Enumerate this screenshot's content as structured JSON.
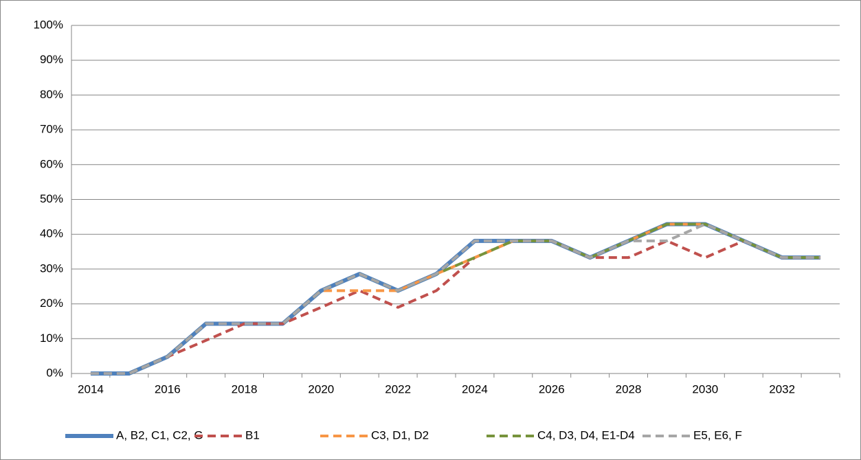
{
  "chart_data": {
    "type": "line",
    "categories": [
      "2014",
      null,
      "2016",
      null,
      "2018",
      null,
      "2020",
      null,
      "2022",
      null,
      "2024",
      null,
      "2026",
      null,
      "2028",
      null,
      "2030",
      null,
      "2032",
      null
    ],
    "series": [
      {
        "name": "A, B2, C1, C2, G",
        "color": "#4f81bd",
        "dashed": false,
        "values": [
          0,
          0,
          4.8,
          14.3,
          14.3,
          14.3,
          23.8,
          28.6,
          23.8,
          28.6,
          38.1,
          38.1,
          38.1,
          33.3,
          38.1,
          42.9,
          42.9,
          38.1,
          33.3,
          33.3
        ]
      },
      {
        "name": "B1",
        "color": "#c0504d",
        "dashed": true,
        "values": [
          0,
          0,
          4.8,
          9.5,
          14.3,
          14.3,
          19.0,
          23.8,
          19.0,
          23.8,
          33.3,
          38.1,
          38.1,
          33.3,
          33.3,
          38.1,
          33.3,
          38.1,
          33.3,
          33.3
        ]
      },
      {
        "name": "C3, D1, D2",
        "color": "#f79646",
        "dashed": true,
        "values": [
          0,
          0,
          4.8,
          14.3,
          14.3,
          14.3,
          23.8,
          23.8,
          23.8,
          28.6,
          33.3,
          38.1,
          38.1,
          33.3,
          38.1,
          42.9,
          42.9,
          38.1,
          33.3,
          33.3
        ]
      },
      {
        "name": "C4, D3, D4, E1-D4",
        "color": "#77933c",
        "dashed": true,
        "values": [
          0,
          0,
          4.8,
          14.3,
          14.3,
          14.3,
          23.8,
          28.6,
          23.8,
          28.6,
          33.3,
          38.1,
          38.1,
          33.3,
          38.1,
          42.9,
          42.9,
          38.1,
          33.3,
          33.3
        ]
      },
      {
        "name": "E5, E6, F",
        "color": "#a6a6a6",
        "dashed": true,
        "values": [
          0,
          0,
          4.8,
          14.3,
          14.3,
          14.3,
          23.8,
          28.6,
          23.8,
          28.6,
          38.1,
          38.1,
          38.1,
          33.3,
          38.1,
          38.1,
          42.9,
          38.1,
          33.3,
          33.3
        ]
      }
    ],
    "ylim": [
      0,
      100
    ],
    "yticks": [
      {
        "value": 0,
        "label": "0%"
      },
      {
        "value": 10,
        "label": "10%"
      },
      {
        "value": 20,
        "label": "20%"
      },
      {
        "value": 30,
        "label": "30%"
      },
      {
        "value": 40,
        "label": "40%"
      },
      {
        "value": 50,
        "label": "50%"
      },
      {
        "value": 60,
        "label": "60%"
      },
      {
        "value": 70,
        "label": "70%"
      },
      {
        "value": 80,
        "label": "80%"
      },
      {
        "value": 90,
        "label": "90%"
      },
      {
        "value": 100,
        "label": "100%"
      }
    ],
    "grid": true,
    "legend": "bottom"
  }
}
